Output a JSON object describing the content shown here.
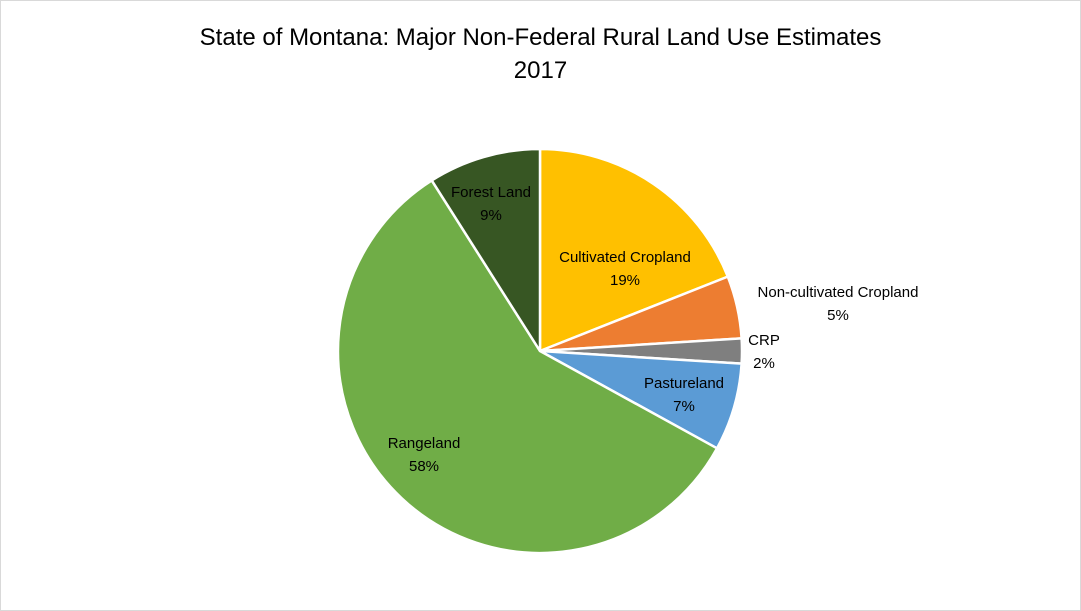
{
  "chart_data": {
    "type": "pie",
    "title": "State of Montana: Major Non-Federal Rural Land Use Estimates",
    "subtitle": "2017",
    "slices": [
      {
        "name": "Cultivated Cropland",
        "value": 19,
        "label": "19%",
        "color": "#FFC000"
      },
      {
        "name": "Non-cultivated Cropland",
        "value": 5,
        "label": "5%",
        "color": "#ED7D31"
      },
      {
        "name": "CRP",
        "value": 2,
        "label": "2%",
        "color": "#7F7F7F"
      },
      {
        "name": "Pastureland",
        "value": 7,
        "label": "7%",
        "color": "#5B9BD5"
      },
      {
        "name": "Rangeland",
        "value": 58,
        "label": "58%",
        "color": "#70AD47"
      },
      {
        "name": "Forest Land",
        "value": 9,
        "label": "9%",
        "color": "#375623"
      }
    ],
    "start_angle": "12 o'clock",
    "direction": "clockwise",
    "legend": "none",
    "data_labels": "category name and percentage"
  }
}
